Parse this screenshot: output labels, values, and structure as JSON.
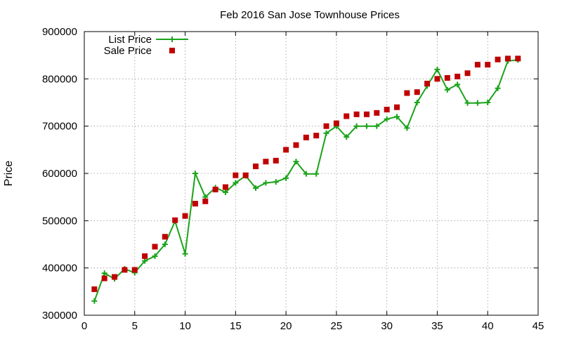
{
  "chart_data": {
    "type": "line",
    "title": "Feb 2016 San Jose Townhouse Prices",
    "xlabel": "",
    "ylabel": "Price",
    "xlim": [
      0,
      45
    ],
    "ylim": [
      300000,
      900000
    ],
    "xticks": [
      0,
      5,
      10,
      15,
      20,
      25,
      30,
      35,
      40,
      45
    ],
    "yticks": [
      300000,
      400000,
      500000,
      600000,
      700000,
      800000,
      900000
    ],
    "grid": true,
    "legend_position": "top-left",
    "series": [
      {
        "name": "List Price",
        "style": "line-plus",
        "color": "#1aa31a",
        "x": [
          1,
          2,
          3,
          4,
          5,
          6,
          7,
          8,
          9,
          10,
          11,
          12,
          13,
          14,
          15,
          16,
          17,
          18,
          19,
          20,
          21,
          22,
          23,
          24,
          25,
          26,
          27,
          28,
          29,
          30,
          31,
          32,
          33,
          34,
          35,
          36,
          37,
          38,
          39,
          40,
          41,
          42,
          43
        ],
        "y": [
          330000,
          389000,
          377000,
          398000,
          390000,
          415000,
          425000,
          450000,
          499000,
          430000,
          600000,
          550000,
          570000,
          560000,
          580000,
          595000,
          569000,
          580000,
          582000,
          590000,
          625000,
          599000,
          599000,
          685000,
          700000,
          677000,
          700000,
          700000,
          700000,
          715000,
          720000,
          696000,
          750000,
          785000,
          820000,
          777000,
          788000,
          749000,
          749000,
          750000,
          780000,
          838000,
          840000
        ]
      },
      {
        "name": "Sale Price",
        "style": "square-markers",
        "color": "#c00000",
        "x": [
          1,
          2,
          3,
          4,
          5,
          6,
          7,
          8,
          9,
          10,
          11,
          12,
          13,
          14,
          15,
          16,
          17,
          18,
          19,
          20,
          21,
          22,
          23,
          24,
          25,
          26,
          27,
          28,
          29,
          30,
          31,
          32,
          33,
          34,
          35,
          36,
          37,
          38,
          39,
          40,
          41,
          42,
          43
        ],
        "y": [
          355000,
          378000,
          381000,
          396000,
          396000,
          425000,
          445000,
          466000,
          501000,
          510000,
          536000,
          541000,
          566000,
          571000,
          596000,
          596000,
          615000,
          625000,
          627000,
          650000,
          660000,
          676000,
          680000,
          700000,
          706000,
          721000,
          725000,
          725000,
          728000,
          735000,
          740000,
          770000,
          772000,
          790000,
          800000,
          802000,
          805000,
          812000,
          830000,
          830000,
          841000,
          843000,
          843000
        ]
      }
    ]
  }
}
